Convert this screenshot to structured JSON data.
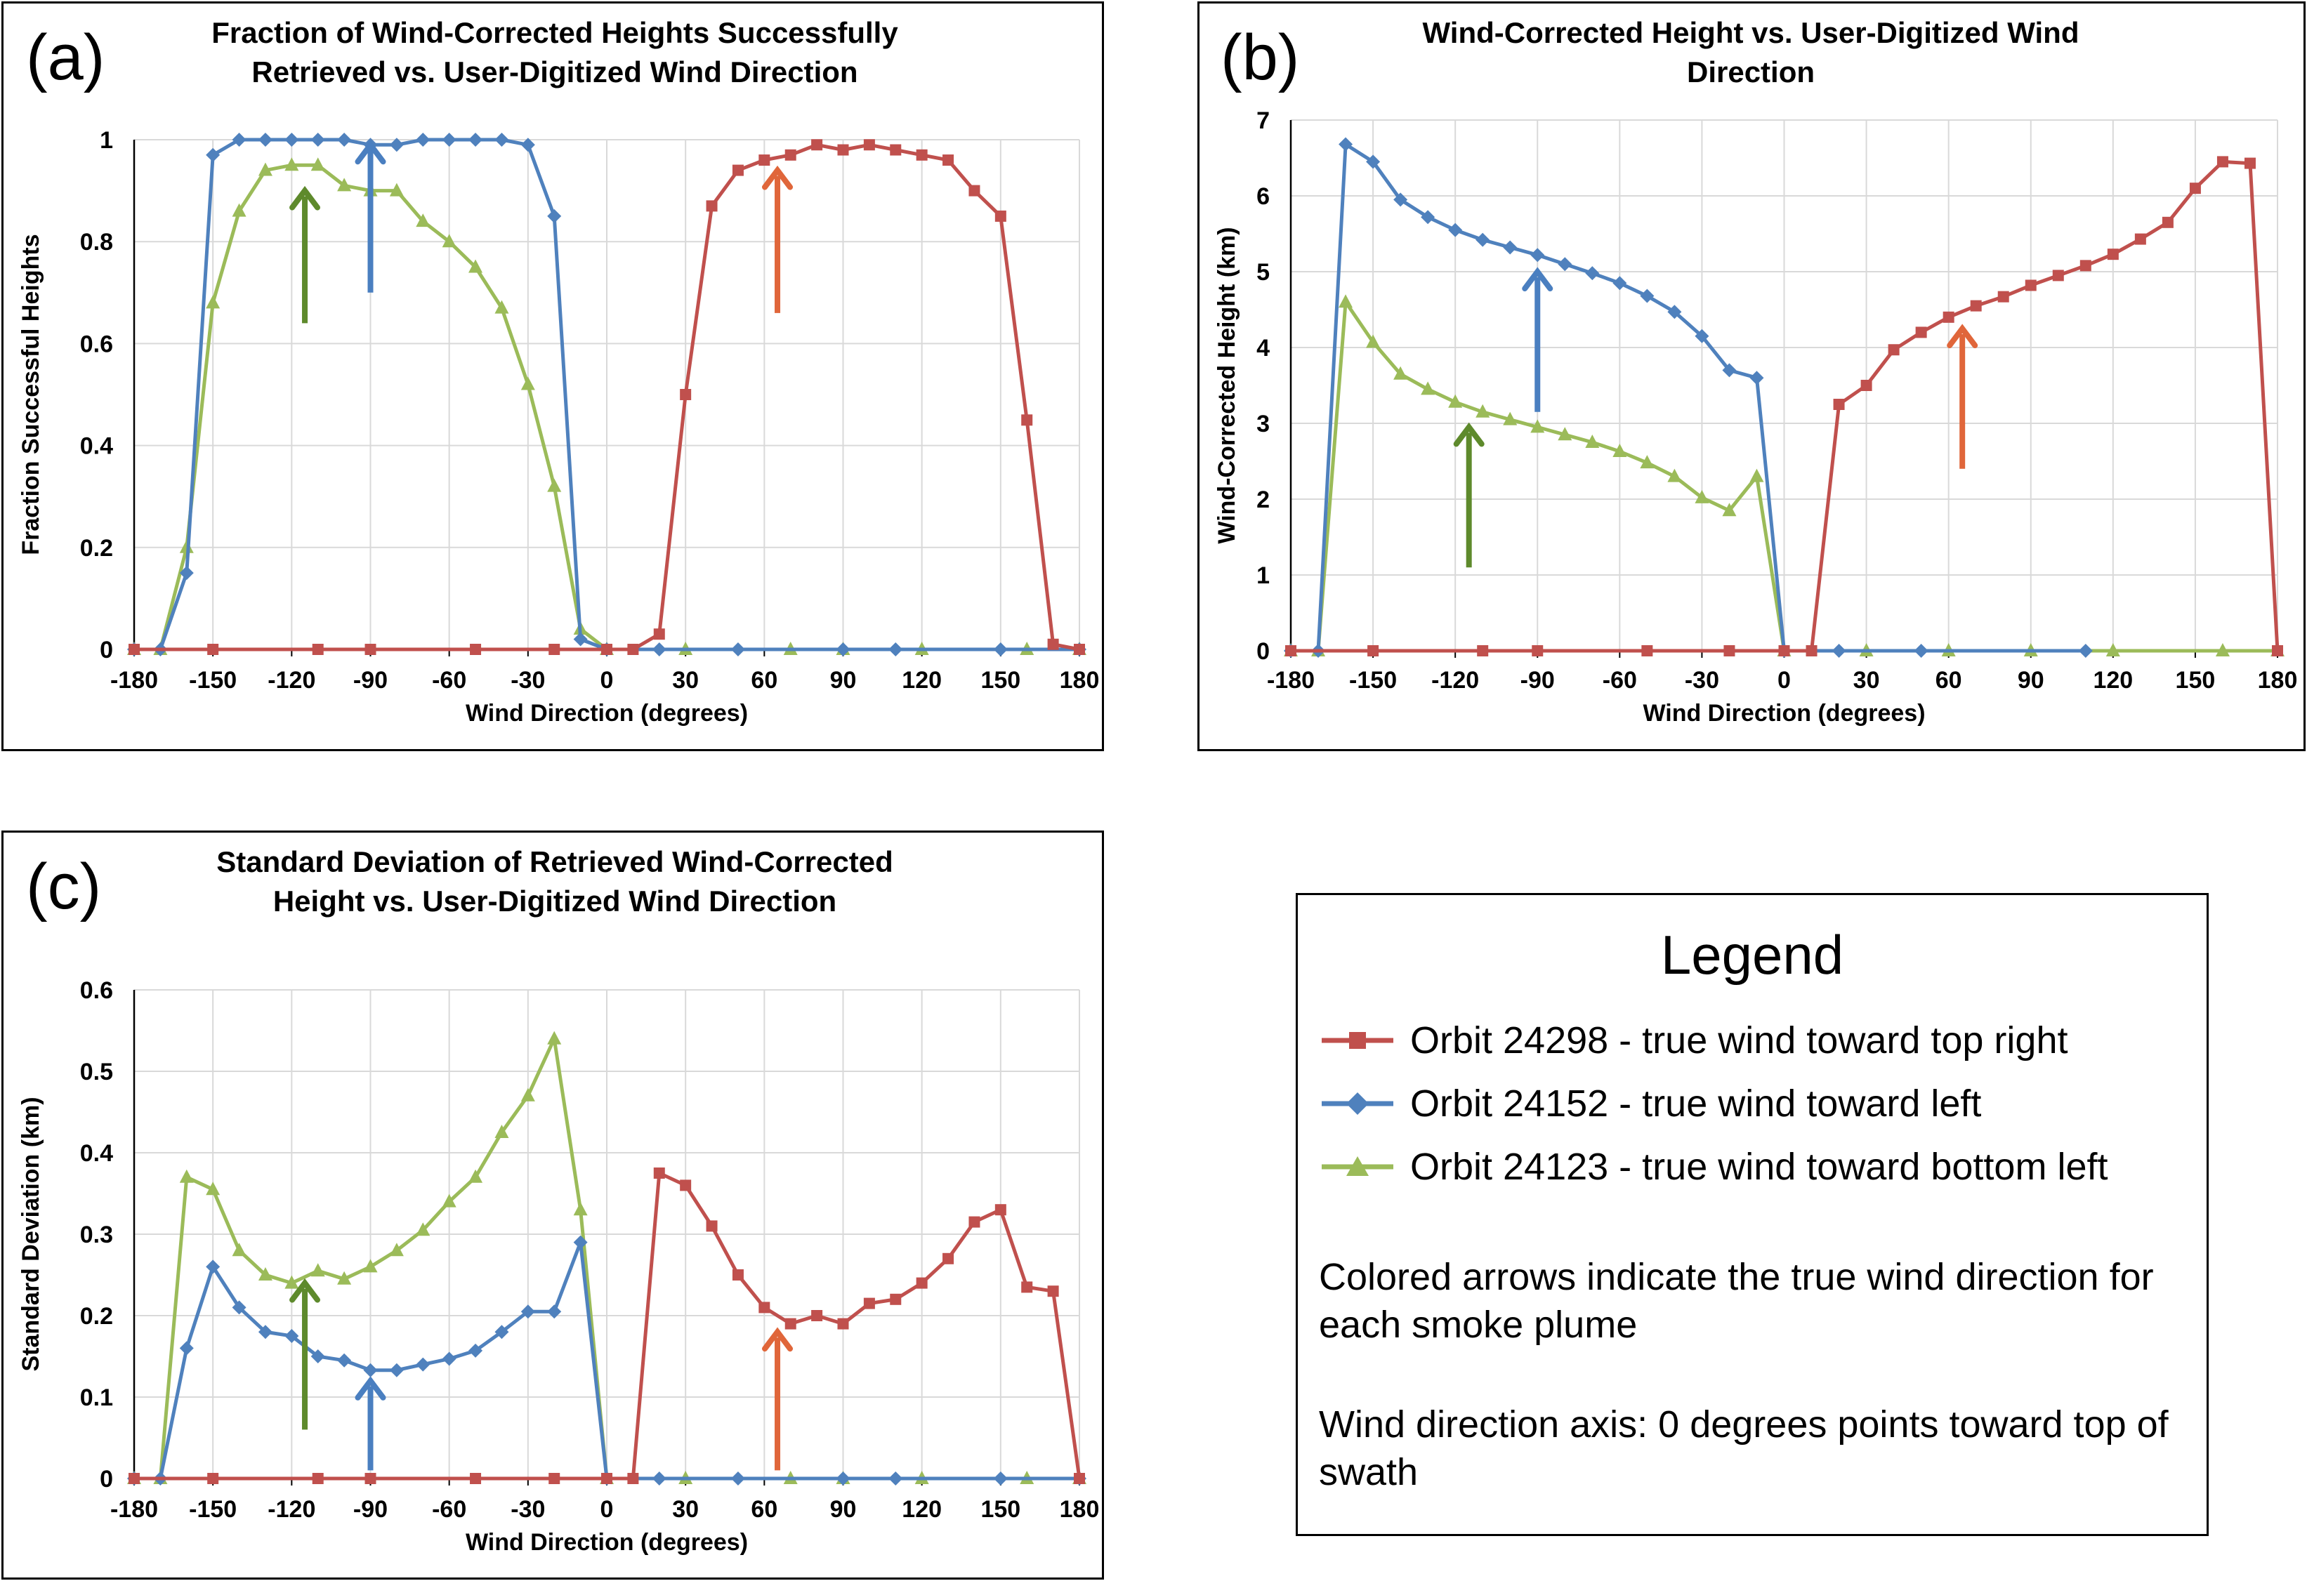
{
  "colors": {
    "red": "#c0504d",
    "blue": "#4f81bd",
    "green": "#9bbb59",
    "arrow_red": "#e0663a",
    "arrow_blue": "#4a7fc0",
    "arrow_green": "#5e8a2c",
    "grid": "#d9d9d9"
  },
  "chart_data": [
    {
      "panel_label": "(a)",
      "type": "line",
      "title_lines": [
        "Fraction of Wind-Corrected Heights Successfully",
        "Retrieved vs. User-Digitized Wind Direction"
      ],
      "xlabel": "Wind Direction (degrees)",
      "ylabel": "Fraction Successful Heights",
      "xlim": [
        -180,
        180
      ],
      "ylim": [
        0,
        1
      ],
      "xticks": [
        -180,
        -150,
        -120,
        -90,
        -60,
        -30,
        0,
        30,
        60,
        90,
        120,
        150,
        180
      ],
      "yticks": [
        0,
        0.2,
        0.4,
        0.6,
        0.8,
        1
      ],
      "ytick_labels": [
        "0",
        "0.2",
        "0.4",
        "0.6",
        "0.8",
        "1"
      ],
      "grid": true,
      "series": [
        {
          "name": "Orbit 24298 - true wind toward top right",
          "color": "red",
          "marker": "square",
          "x": [
            -180,
            -150,
            -110,
            -90,
            -50,
            -20,
            0,
            10,
            20,
            30,
            40,
            50,
            60,
            70,
            80,
            90,
            100,
            110,
            120,
            130,
            140,
            150,
            160,
            170,
            180
          ],
          "y": [
            0,
            0,
            0,
            0,
            0,
            0,
            0,
            0,
            0.03,
            0.5,
            0.87,
            0.94,
            0.96,
            0.97,
            0.99,
            0.98,
            0.99,
            0.98,
            0.97,
            0.96,
            0.9,
            0.85,
            0.45,
            0.01,
            0
          ]
        },
        {
          "name": "Orbit 24152 - true wind toward left",
          "color": "blue",
          "marker": "diamond",
          "x": [
            -180,
            -170,
            -160,
            -150,
            -140,
            -130,
            -120,
            -110,
            -100,
            -90,
            -80,
            -70,
            -60,
            -50,
            -40,
            -30,
            -20,
            -10,
            0,
            20,
            50,
            90,
            110,
            150,
            180
          ],
          "y": [
            0,
            0,
            0.15,
            0.97,
            1,
            1,
            1,
            1,
            1,
            0.99,
            0.99,
            1,
            1,
            1,
            1,
            0.99,
            0.85,
            0.02,
            0,
            0,
            0,
            0,
            0,
            0,
            0
          ]
        },
        {
          "name": "Orbit 24123 - true wind toward bottom left",
          "color": "green",
          "marker": "triangle",
          "x": [
            -180,
            -170,
            -160,
            -150,
            -140,
            -130,
            -120,
            -110,
            -100,
            -90,
            -80,
            -70,
            -60,
            -50,
            -40,
            -30,
            -20,
            -10,
            0,
            30,
            70,
            90,
            120,
            160,
            180
          ],
          "y": [
            0,
            0,
            0.2,
            0.68,
            0.86,
            0.94,
            0.95,
            0.95,
            0.91,
            0.9,
            0.9,
            0.84,
            0.8,
            0.75,
            0.67,
            0.52,
            0.32,
            0.04,
            0,
            0,
            0,
            0,
            0,
            0,
            0
          ]
        }
      ],
      "arrows": [
        {
          "color": "arrow_green",
          "x": -115,
          "y_from": 0.64,
          "y_to": 0.9
        },
        {
          "color": "arrow_blue",
          "x": -90,
          "y_from": 0.7,
          "y_to": 0.99
        },
        {
          "color": "arrow_red",
          "x": 65,
          "y_from": 0.66,
          "y_to": 0.94
        }
      ]
    },
    {
      "panel_label": "(b)",
      "type": "line",
      "title_lines": [
        "Wind-Corrected Height vs. User-Digitized Wind",
        "Direction"
      ],
      "xlabel": "Wind Direction (degrees)",
      "ylabel": "Wind-Corrected Height (km)",
      "xlim": [
        -180,
        180
      ],
      "ylim": [
        0,
        7
      ],
      "xticks": [
        -180,
        -150,
        -120,
        -90,
        -60,
        -30,
        0,
        30,
        60,
        90,
        120,
        150,
        180
      ],
      "yticks": [
        0,
        1,
        2,
        3,
        4,
        5,
        6,
        7
      ],
      "ytick_labels": [
        "0",
        "1",
        "2",
        "3",
        "4",
        "5",
        "6",
        "7"
      ],
      "grid": true,
      "series": [
        {
          "name": "Orbit 24298 - true wind toward top right",
          "color": "red",
          "marker": "square",
          "x": [
            -180,
            -150,
            -110,
            -90,
            -50,
            -20,
            0,
            10,
            20,
            30,
            40,
            50,
            60,
            70,
            80,
            90,
            100,
            110,
            120,
            130,
            140,
            150,
            160,
            170,
            180
          ],
          "y": [
            0,
            0,
            0,
            0,
            0,
            0,
            0,
            0,
            3.25,
            3.5,
            3.97,
            4.2,
            4.4,
            4.55,
            4.67,
            4.82,
            4.95,
            5.08,
            5.23,
            5.43,
            5.65,
            6.1,
            6.45,
            6.43,
            0
          ]
        },
        {
          "name": "Orbit 24152 - true wind toward left",
          "color": "blue",
          "marker": "diamond",
          "x": [
            -180,
            -170,
            -160,
            -150,
            -140,
            -130,
            -120,
            -110,
            -100,
            -90,
            -80,
            -70,
            -60,
            -50,
            -40,
            -30,
            -20,
            -10,
            0,
            20,
            50,
            110
          ],
          "y": [
            0,
            0,
            6.68,
            6.45,
            5.95,
            5.72,
            5.55,
            5.42,
            5.32,
            5.22,
            5.1,
            4.98,
            4.85,
            4.68,
            4.47,
            4.15,
            3.7,
            3.6,
            0,
            0,
            0,
            0
          ]
        },
        {
          "name": "Orbit 24123 - true wind toward bottom left",
          "color": "green",
          "marker": "triangle",
          "x": [
            -180,
            -170,
            -160,
            -150,
            -140,
            -130,
            -120,
            -110,
            -100,
            -90,
            -80,
            -70,
            -60,
            -50,
            -40,
            -30,
            -20,
            -10,
            0,
            30,
            60,
            90,
            120,
            160,
            180
          ],
          "y": [
            0,
            0,
            4.6,
            4.07,
            3.65,
            3.45,
            3.28,
            3.15,
            3.05,
            2.95,
            2.85,
            2.75,
            2.63,
            2.48,
            2.3,
            2.02,
            1.85,
            2.3,
            0,
            0,
            0,
            0,
            0,
            0,
            0
          ]
        }
      ],
      "arrows": [
        {
          "color": "arrow_green",
          "x": -115,
          "y_from": 1.1,
          "y_to": 2.95
        },
        {
          "color": "arrow_blue",
          "x": -90,
          "y_from": 3.15,
          "y_to": 5.0
        },
        {
          "color": "arrow_red",
          "x": 65,
          "y_from": 2.4,
          "y_to": 4.25
        }
      ]
    },
    {
      "panel_label": "(c)",
      "type": "line",
      "title_lines": [
        "Standard Deviation of Retrieved Wind-Corrected",
        "Height  vs. User-Digitized Wind Direction"
      ],
      "xlabel": "Wind Direction (degrees)",
      "ylabel": "Standard Deviation (km)",
      "xlim": [
        -180,
        180
      ],
      "ylim": [
        0,
        0.6
      ],
      "xticks": [
        -180,
        -150,
        -120,
        -90,
        -60,
        -30,
        0,
        30,
        60,
        90,
        120,
        150,
        180
      ],
      "yticks": [
        0,
        0.1,
        0.2,
        0.3,
        0.4,
        0.5,
        0.6
      ],
      "ytick_labels": [
        "0",
        "0.1",
        "0.2",
        "0.3",
        "0.4",
        "0.5",
        "0.6"
      ],
      "grid": true,
      "series": [
        {
          "name": "Orbit 24298 - true wind toward top right",
          "color": "red",
          "marker": "square",
          "x": [
            -180,
            -150,
            -110,
            -90,
            -50,
            -20,
            0,
            10,
            20,
            30,
            40,
            50,
            60,
            70,
            80,
            90,
            100,
            110,
            120,
            130,
            140,
            150,
            160,
            170,
            180
          ],
          "y": [
            0,
            0,
            0,
            0,
            0,
            0,
            0,
            0,
            0.375,
            0.36,
            0.31,
            0.25,
            0.21,
            0.19,
            0.2,
            0.19,
            0.215,
            0.22,
            0.24,
            0.27,
            0.315,
            0.33,
            0.235,
            0.23,
            0
          ]
        },
        {
          "name": "Orbit 24152 - true wind toward left",
          "color": "blue",
          "marker": "diamond",
          "x": [
            -180,
            -170,
            -160,
            -150,
            -140,
            -130,
            -120,
            -110,
            -100,
            -90,
            -80,
            -70,
            -60,
            -50,
            -40,
            -30,
            -20,
            -10,
            0,
            20,
            50,
            90,
            110,
            150,
            180
          ],
          "y": [
            0,
            0,
            0.16,
            0.26,
            0.21,
            0.18,
            0.175,
            0.15,
            0.145,
            0.133,
            0.133,
            0.14,
            0.147,
            0.157,
            0.18,
            0.205,
            0.205,
            0.29,
            0,
            0,
            0,
            0,
            0,
            0,
            0
          ]
        },
        {
          "name": "Orbit 24123 - true wind toward bottom left",
          "color": "green",
          "marker": "triangle",
          "x": [
            -180,
            -170,
            -160,
            -150,
            -140,
            -130,
            -120,
            -110,
            -100,
            -90,
            -80,
            -70,
            -60,
            -50,
            -40,
            -30,
            -20,
            -10,
            0,
            30,
            70,
            90,
            120,
            160,
            180
          ],
          "y": [
            0,
            0,
            0.37,
            0.355,
            0.28,
            0.25,
            0.24,
            0.255,
            0.245,
            0.26,
            0.28,
            0.305,
            0.34,
            0.37,
            0.425,
            0.47,
            0.54,
            0.33,
            0,
            0,
            0,
            0,
            0,
            0,
            0
          ]
        }
      ],
      "arrows": [
        {
          "color": "arrow_green",
          "x": -115,
          "y_from": 0.06,
          "y_to": 0.24
        },
        {
          "color": "arrow_blue",
          "x": -90,
          "y_from": 0.01,
          "y_to": 0.12
        },
        {
          "color": "arrow_red",
          "x": 65,
          "y_from": 0.01,
          "y_to": 0.18
        }
      ]
    }
  ],
  "legend": {
    "title": "Legend",
    "items": [
      {
        "label": "Orbit 24298 - true wind toward top right",
        "color": "red",
        "marker": "square"
      },
      {
        "label": "Orbit 24152 - true wind toward left",
        "color": "blue",
        "marker": "diamond"
      },
      {
        "label": "Orbit 24123 - true wind toward bottom left",
        "color": "green",
        "marker": "triangle"
      }
    ],
    "note1": "Colored arrows indicate the true wind direction for each smoke plume",
    "note2": "Wind direction axis: 0 degrees points toward top of swath"
  }
}
